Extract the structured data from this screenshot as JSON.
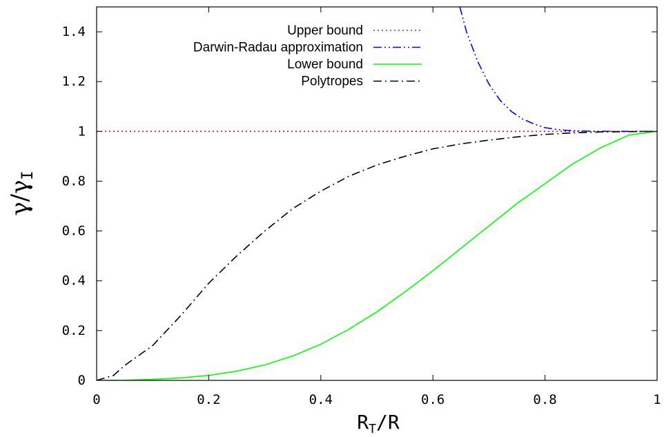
{
  "chart_data": {
    "type": "line",
    "xlabel": {
      "main": "R",
      "sub": "T",
      "tail": "/R"
    },
    "ylabel": {
      "main": "γ/γ",
      "sub": "I"
    },
    "xlim": [
      0,
      1
    ],
    "ylim": [
      0,
      1.5
    ],
    "x_ticks": [
      "0",
      "0.2",
      "0.4",
      "0.6",
      "0.8",
      "1"
    ],
    "x_tick_values": [
      0,
      0.2,
      0.4,
      0.6,
      0.8,
      1
    ],
    "y_ticks": [
      "0",
      "0.2",
      "0.4",
      "0.6",
      "0.8",
      "1",
      "1.2",
      "1.4"
    ],
    "y_tick_values": [
      0,
      0.2,
      0.4,
      0.6,
      0.8,
      1,
      1.2,
      1.4
    ],
    "grid": false,
    "legend_position": "top-right",
    "series": [
      {
        "name": "Upper bound",
        "color": "#ff0000",
        "dash": "dotted",
        "x": [
          0,
          1
        ],
        "y": [
          1,
          1
        ]
      },
      {
        "name": "Darwin-Radau approximation",
        "color": "#0000ff",
        "dash": "dash-dot-dot",
        "x": [
          0.648,
          0.66,
          0.68,
          0.7,
          0.72,
          0.74,
          0.76,
          0.78,
          0.8,
          0.82,
          0.84,
          0.86,
          0.88,
          0.9,
          0.92,
          0.94,
          0.96,
          0.98,
          1.0
        ],
        "y": [
          1.5,
          1.4,
          1.28,
          1.19,
          1.125,
          1.08,
          1.05,
          1.03,
          1.015,
          1.008,
          1.004,
          1.002,
          1.001,
          1.0005,
          1.0002,
          1.0001,
          1.0,
          1.0,
          1.0
        ]
      },
      {
        "name": "Lower bound",
        "color": "#00ff00",
        "dash": "solid",
        "x": [
          0,
          0.05,
          0.1,
          0.15,
          0.2,
          0.25,
          0.3,
          0.35,
          0.4,
          0.45,
          0.5,
          0.55,
          0.6,
          0.65,
          0.7,
          0.75,
          0.8,
          0.85,
          0.9,
          0.95,
          1.0
        ],
        "y": [
          0,
          0.0005,
          0.004,
          0.01,
          0.02,
          0.037,
          0.062,
          0.098,
          0.145,
          0.205,
          0.275,
          0.355,
          0.44,
          0.53,
          0.62,
          0.71,
          0.79,
          0.87,
          0.935,
          0.985,
          1.0
        ]
      },
      {
        "name": "Polytropes",
        "color": "#000000",
        "dash": "dash-dot",
        "x": [
          0,
          0.03,
          0.05,
          0.1,
          0.15,
          0.2,
          0.25,
          0.3,
          0.35,
          0.4,
          0.45,
          0.5,
          0.55,
          0.6,
          0.65,
          0.7,
          0.75,
          0.8,
          0.85,
          0.9,
          0.95,
          1.0
        ],
        "y": [
          0,
          0.02,
          0.06,
          0.14,
          0.26,
          0.39,
          0.5,
          0.6,
          0.69,
          0.76,
          0.82,
          0.865,
          0.9,
          0.93,
          0.95,
          0.965,
          0.978,
          0.988,
          0.994,
          0.998,
          0.999,
          1.0
        ]
      }
    ]
  }
}
